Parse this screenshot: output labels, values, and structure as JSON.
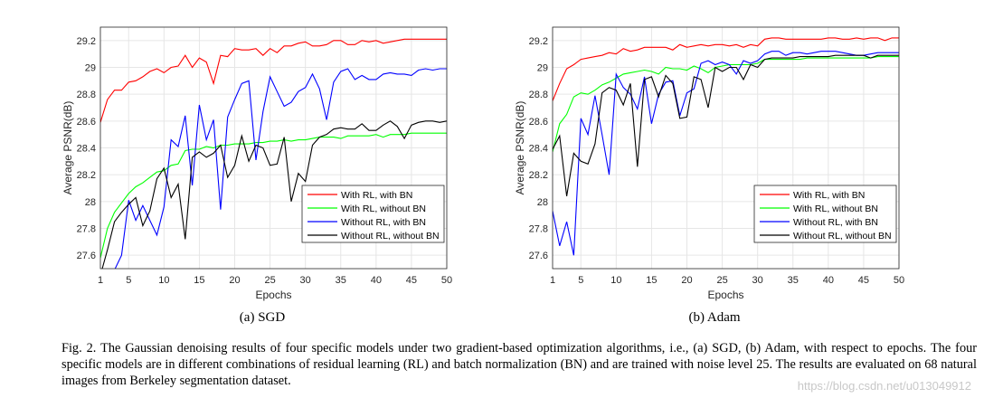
{
  "figure": {
    "caption": "Fig. 2.  The Gaussian denoising results of four specific models under two gradient-based optimization algorithms, i.e., (a) SGD, (b) Adam, with respect to epochs. The four specific models are in different combinations of residual learning (RL) and batch normalization (BN) and are trained with noise level 25. The results are evaluated on 68 natural images from Berkeley segmentation dataset.",
    "watermark": "https://blog.csdn.net/u013049912"
  },
  "chart_data": [
    {
      "type": "line",
      "subcaption": "(a) SGD",
      "xlabel": "Epochs",
      "ylabel": "Average PSNR(dB)",
      "xlim": [
        1,
        50
      ],
      "ylim": [
        27.5,
        29.3
      ],
      "xticks": [
        1,
        5,
        10,
        15,
        20,
        25,
        30,
        35,
        40,
        45,
        50
      ],
      "yticks": [
        27.6,
        27.8,
        28,
        28.2,
        28.4,
        28.6,
        28.8,
        29,
        29.2
      ],
      "grid": true,
      "legend_position": "lower-right",
      "series": [
        {
          "name": "With RL, with BN",
          "color": "#ff0000",
          "values": [
            28.59,
            28.76,
            28.83,
            28.83,
            28.89,
            28.9,
            28.93,
            28.97,
            28.99,
            28.96,
            29.0,
            29.01,
            29.09,
            29.0,
            29.07,
            29.04,
            28.88,
            29.09,
            29.08,
            29.14,
            29.13,
            29.13,
            29.14,
            29.09,
            29.14,
            29.11,
            29.16,
            29.16,
            29.18,
            29.19,
            29.16,
            29.16,
            29.17,
            29.2,
            29.2,
            29.17,
            29.17,
            29.2,
            29.19,
            29.2,
            29.18,
            29.19,
            29.2,
            29.21,
            29.21,
            29.21,
            29.21,
            29.21,
            29.21,
            29.21
          ]
        },
        {
          "name": "With RL, without BN",
          "color": "#00ff00",
          "values": [
            27.58,
            27.8,
            27.92,
            27.99,
            28.06,
            28.11,
            28.14,
            28.18,
            28.22,
            28.23,
            28.27,
            28.28,
            28.38,
            28.39,
            28.39,
            28.41,
            28.4,
            28.42,
            28.42,
            28.43,
            28.43,
            28.43,
            28.44,
            28.44,
            28.45,
            28.45,
            28.46,
            28.45,
            28.46,
            28.46,
            28.47,
            28.48,
            28.48,
            28.48,
            28.47,
            28.49,
            28.49,
            28.49,
            28.49,
            28.5,
            28.48,
            28.5,
            28.5,
            28.5,
            28.51,
            28.51,
            28.51,
            28.51,
            28.51,
            28.51
          ]
        },
        {
          "name": "Without RL, with BN",
          "color": "#0000ff",
          "values": [
            27.48,
            27.49,
            27.49,
            27.6,
            28.01,
            27.86,
            27.97,
            27.86,
            27.75,
            27.96,
            28.46,
            28.41,
            28.64,
            28.12,
            28.72,
            28.46,
            28.61,
            27.94,
            28.63,
            28.76,
            28.88,
            28.9,
            28.31,
            28.67,
            28.93,
            28.82,
            28.71,
            28.74,
            28.82,
            28.85,
            28.95,
            28.84,
            28.61,
            28.89,
            28.97,
            28.99,
            28.91,
            28.94,
            28.91,
            28.91,
            28.95,
            28.96,
            28.95,
            28.95,
            28.94,
            28.98,
            28.99,
            28.98,
            28.99,
            28.99
          ]
        },
        {
          "name": "Without RL, without BN",
          "color": "#000000",
          "values": [
            27.45,
            27.64,
            27.85,
            27.92,
            27.98,
            28.03,
            27.82,
            27.93,
            28.17,
            28.25,
            28.03,
            28.13,
            27.72,
            28.33,
            28.37,
            28.33,
            28.36,
            28.42,
            28.18,
            28.27,
            28.49,
            28.3,
            28.42,
            28.4,
            28.27,
            28.28,
            28.48,
            28.0,
            28.21,
            28.15,
            28.42,
            28.48,
            28.5,
            28.54,
            28.55,
            28.54,
            28.54,
            28.58,
            28.53,
            28.53,
            28.57,
            28.6,
            28.56,
            28.47,
            28.57,
            28.59,
            28.6,
            28.6,
            28.59,
            28.6
          ]
        }
      ]
    },
    {
      "type": "line",
      "subcaption": "(b) Adam",
      "xlabel": "Epochs",
      "ylabel": "Average PSNR(dB)",
      "xlim": [
        1,
        50
      ],
      "ylim": [
        27.5,
        29.3
      ],
      "xticks": [
        1,
        5,
        10,
        15,
        20,
        25,
        30,
        35,
        40,
        45,
        50
      ],
      "yticks": [
        27.6,
        27.8,
        28,
        28.2,
        28.4,
        28.6,
        28.8,
        29,
        29.2
      ],
      "grid": true,
      "legend_position": "lower-right",
      "series": [
        {
          "name": "With RL, with BN",
          "color": "#ff0000",
          "values": [
            28.75,
            28.88,
            28.99,
            29.02,
            29.06,
            29.07,
            29.08,
            29.09,
            29.11,
            29.1,
            29.14,
            29.12,
            29.13,
            29.15,
            29.15,
            29.15,
            29.15,
            29.13,
            29.17,
            29.15,
            29.16,
            29.17,
            29.16,
            29.17,
            29.17,
            29.16,
            29.17,
            29.15,
            29.17,
            29.16,
            29.21,
            29.22,
            29.22,
            29.21,
            29.21,
            29.21,
            29.21,
            29.21,
            29.21,
            29.22,
            29.22,
            29.21,
            29.21,
            29.22,
            29.21,
            29.22,
            29.22,
            29.2,
            29.22,
            29.22
          ]
        },
        {
          "name": "With RL, without BN",
          "color": "#00ff00",
          "values": [
            28.37,
            28.58,
            28.65,
            28.78,
            28.81,
            28.8,
            28.83,
            28.87,
            28.89,
            28.92,
            28.95,
            28.96,
            28.97,
            28.98,
            28.97,
            28.95,
            29.0,
            28.99,
            28.99,
            28.98,
            29.01,
            28.99,
            28.96,
            29.0,
            29.01,
            29.02,
            29.02,
            29.02,
            29.02,
            29.03,
            29.06,
            29.06,
            29.06,
            29.06,
            29.06,
            29.06,
            29.07,
            29.07,
            29.07,
            29.07,
            29.07,
            29.07,
            29.07,
            29.07,
            29.07,
            29.07,
            29.08,
            29.08,
            29.08,
            29.08
          ]
        },
        {
          "name": "Without RL, with BN",
          "color": "#0000ff",
          "values": [
            27.93,
            27.67,
            27.85,
            27.6,
            28.62,
            28.5,
            28.79,
            28.5,
            28.2,
            28.95,
            28.85,
            28.8,
            28.69,
            28.93,
            28.58,
            28.8,
            28.89,
            28.9,
            28.64,
            28.81,
            28.84,
            29.03,
            29.05,
            29.02,
            29.04,
            29.02,
            28.95,
            29.05,
            29.03,
            29.05,
            29.1,
            29.12,
            29.12,
            29.09,
            29.11,
            29.11,
            29.1,
            29.11,
            29.12,
            29.12,
            29.12,
            29.11,
            29.1,
            29.09,
            29.09,
            29.1,
            29.11,
            29.11,
            29.11,
            29.11
          ]
        },
        {
          "name": "Without RL, without BN",
          "color": "#000000",
          "values": [
            28.39,
            28.49,
            28.04,
            28.36,
            28.3,
            28.28,
            28.43,
            28.81,
            28.85,
            28.83,
            28.72,
            28.88,
            28.26,
            28.91,
            28.93,
            28.78,
            28.94,
            28.88,
            28.62,
            28.63,
            28.93,
            28.91,
            28.7,
            29.0,
            28.97,
            29.0,
            29.0,
            28.91,
            29.02,
            29.0,
            29.06,
            29.07,
            29.07,
            29.07,
            29.07,
            29.08,
            29.08,
            29.08,
            29.08,
            29.08,
            29.09,
            29.09,
            29.09,
            29.09,
            29.09,
            29.07,
            29.09,
            29.09,
            29.09,
            29.09
          ]
        }
      ]
    }
  ]
}
